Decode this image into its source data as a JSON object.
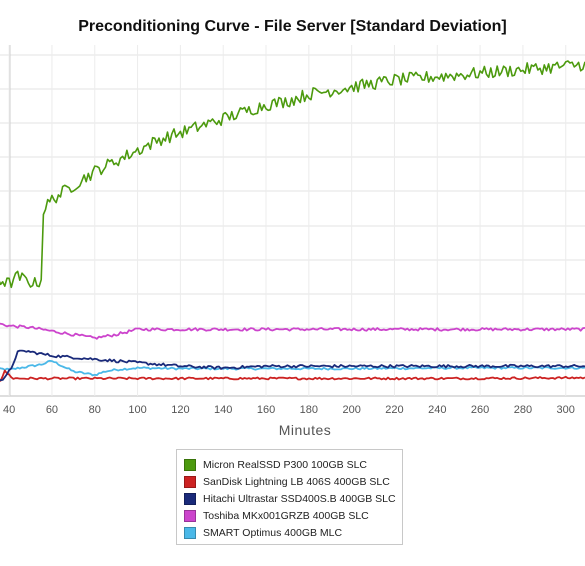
{
  "chart_data": {
    "type": "line",
    "title": "Preconditioning Curve - File Server [Standard Deviation]",
    "xlabel": "Minutes",
    "ylabel": "",
    "xlim": [
      32,
      309
    ],
    "ylim": [
      0,
      1
    ],
    "x_ticks": [
      40,
      60,
      80,
      100,
      120,
      140,
      160,
      180,
      200,
      220,
      240,
      260,
      280,
      300
    ],
    "x_tick_labels": [
      "40",
      "60",
      "80",
      "100",
      "120",
      "140",
      "160",
      "180",
      "200",
      "220",
      "240",
      "260",
      "280",
      "300"
    ],
    "grid": true,
    "legend_position": "bottom",
    "series": [
      {
        "name": "Micron RealSSD P300 100GB SLC",
        "color": "#4c9a0e",
        "x": [
          32,
          36,
          40,
          44,
          48,
          52,
          55,
          56,
          60,
          65,
          70,
          75,
          80,
          90,
          100,
          110,
          120,
          130,
          140,
          150,
          160,
          170,
          180,
          190,
          200,
          210,
          220,
          230,
          240,
          250,
          260,
          270,
          280,
          290,
          300,
          309
        ],
        "y": [
          0.35,
          0.33,
          0.32,
          0.34,
          0.33,
          0.32,
          0.33,
          0.53,
          0.56,
          0.58,
          0.6,
          0.62,
          0.64,
          0.67,
          0.7,
          0.73,
          0.75,
          0.77,
          0.79,
          0.81,
          0.83,
          0.84,
          0.86,
          0.87,
          0.88,
          0.89,
          0.9,
          0.905,
          0.91,
          0.915,
          0.92,
          0.925,
          0.93,
          0.935,
          0.94,
          0.945
        ],
        "noise": 0.018
      },
      {
        "name": "SanDisk Lightning LB 406S 400GB SLC",
        "color": "#cc2222",
        "x": [
          32,
          36,
          38,
          42,
          60,
          100,
          150,
          200,
          250,
          309
        ],
        "y": [
          0.05,
          0.045,
          0.07,
          0.05,
          0.05,
          0.05,
          0.05,
          0.05,
          0.05,
          0.052
        ],
        "noise": 0.003
      },
      {
        "name": "Hitachi Ultrastar SSD400S.B 400GB SLC",
        "color": "#1a2a7a",
        "x": [
          32,
          36,
          38,
          41,
          44,
          48,
          55,
          60,
          70,
          80,
          100,
          120,
          140,
          160,
          200,
          250,
          309
        ],
        "y": [
          0.07,
          0.045,
          0.05,
          0.08,
          0.125,
          0.128,
          0.12,
          0.115,
          0.11,
          0.105,
          0.095,
          0.085,
          0.08,
          0.085,
          0.085,
          0.085,
          0.085
        ],
        "noise": 0.004
      },
      {
        "name": "Toshiba MKx001GRZB 400GB SLC",
        "color": "#cc44cc",
        "x": [
          32,
          40,
          50,
          60,
          70,
          80,
          90,
          100,
          120,
          150,
          200,
          250,
          309
        ],
        "y": [
          0.21,
          0.2,
          0.195,
          0.185,
          0.175,
          0.165,
          0.175,
          0.19,
          0.19,
          0.19,
          0.19,
          0.19,
          0.19
        ],
        "noise": 0.004
      },
      {
        "name": "SMART Optimus 400GB MLC",
        "color": "#4ab8e8",
        "x": [
          32,
          40,
          45,
          50,
          55,
          60,
          65,
          70,
          75,
          80,
          85,
          90,
          100,
          120,
          140,
          160,
          200,
          250,
          309
        ],
        "y": [
          0.08,
          0.075,
          0.08,
          0.085,
          0.09,
          0.1,
          0.085,
          0.07,
          0.065,
          0.06,
          0.07,
          0.075,
          0.08,
          0.078,
          0.078,
          0.078,
          0.078,
          0.08,
          0.08
        ],
        "noise": 0.003
      }
    ]
  }
}
